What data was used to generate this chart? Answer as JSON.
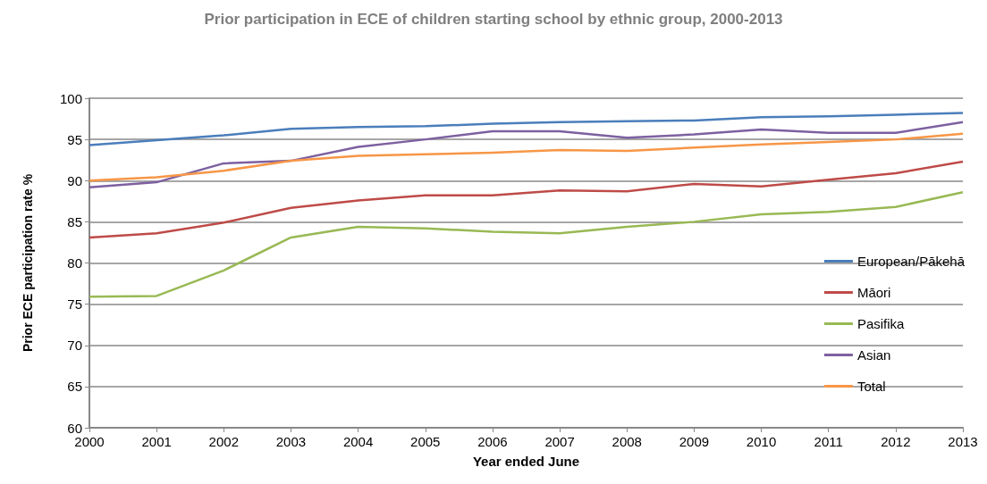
{
  "chart_data": {
    "type": "line",
    "title": "Prior participation in ECE of children starting school by ethnic group, 2000-2013",
    "xlabel": "Year ended June",
    "ylabel": "Prior ECE participation rate %",
    "x": [
      2000,
      2001,
      2002,
      2003,
      2004,
      2005,
      2006,
      2007,
      2008,
      2009,
      2010,
      2011,
      2012,
      2013
    ],
    "series": [
      {
        "name": "European/Pākehā",
        "color": "#4a7ebb",
        "values": [
          94.3,
          94.9,
          95.5,
          96.3,
          96.5,
          96.6,
          96.9,
          97.1,
          97.2,
          97.3,
          97.7,
          97.8,
          98.0,
          98.2
        ]
      },
      {
        "name": "Māori",
        "color": "#be4b48",
        "values": [
          83.1,
          83.6,
          84.9,
          86.7,
          87.6,
          88.2,
          88.2,
          88.8,
          88.7,
          89.6,
          89.3,
          90.1,
          90.9,
          92.3
        ]
      },
      {
        "name": "Pasifika",
        "color": "#98b954",
        "values": [
          75.9,
          76.0,
          79.1,
          83.1,
          84.4,
          84.2,
          83.8,
          83.6,
          84.4,
          85.0,
          85.9,
          86.2,
          86.8,
          88.6
        ]
      },
      {
        "name": "Asian",
        "color": "#7d60a0",
        "values": [
          89.2,
          89.8,
          92.1,
          92.4,
          94.1,
          95.0,
          96.0,
          96.0,
          95.2,
          95.6,
          96.2,
          95.8,
          95.8,
          97.1
        ]
      },
      {
        "name": "Total",
        "color": "#f79646",
        "values": [
          90.0,
          90.4,
          91.2,
          92.4,
          93.0,
          93.2,
          93.4,
          93.7,
          93.6,
          94.0,
          94.4,
          94.7,
          95.0,
          95.7
        ]
      }
    ],
    "xlim": [
      2000,
      2013
    ],
    "xticks": [
      2000,
      2001,
      2002,
      2003,
      2004,
      2005,
      2006,
      2007,
      2008,
      2009,
      2010,
      2011,
      2012,
      2013
    ],
    "ylim": [
      60,
      100
    ],
    "yticks": [
      60,
      65,
      70,
      75,
      80,
      85,
      90,
      95,
      100
    ],
    "grid": "y",
    "legend": "right",
    "marker": "none",
    "line_style": "solid"
  }
}
